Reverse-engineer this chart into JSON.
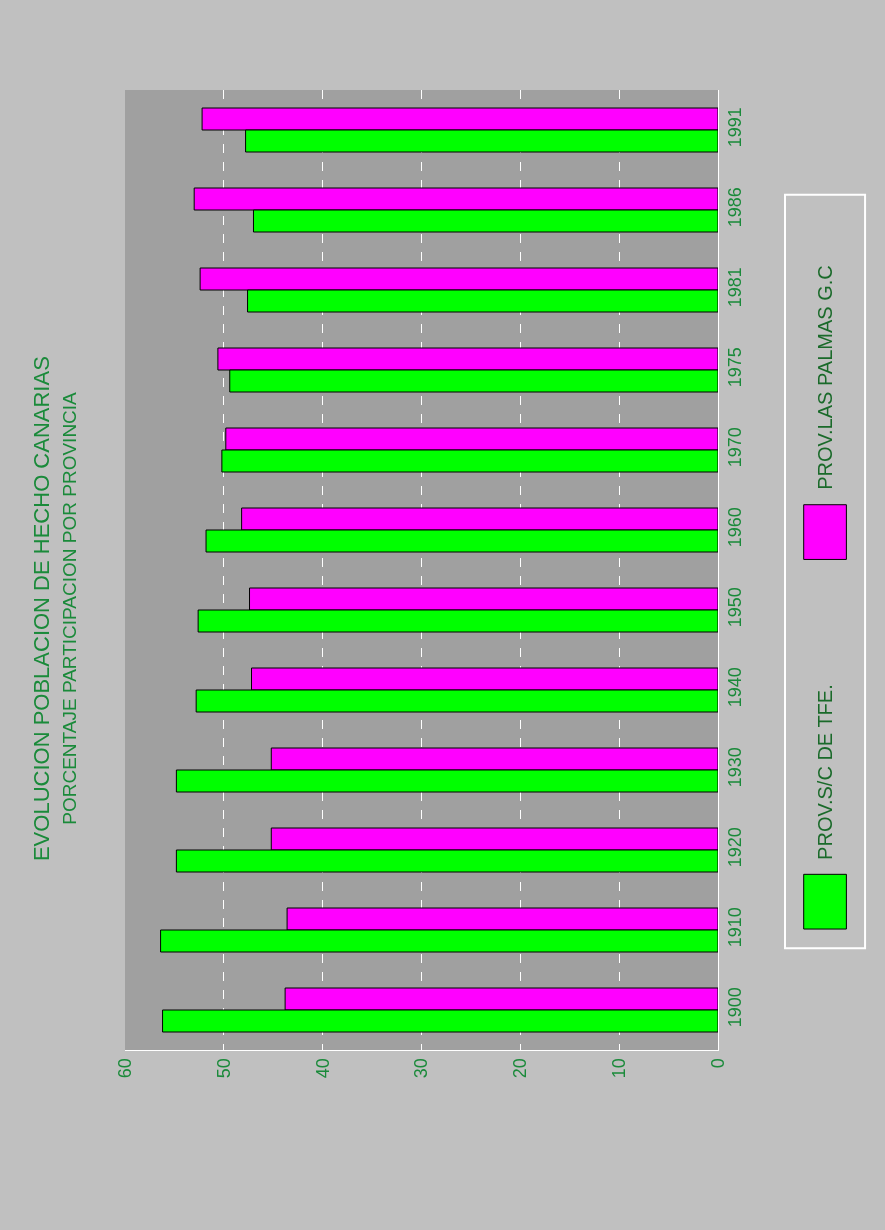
{
  "chart_data": {
    "type": "bar",
    "orientation": "horizontal",
    "title": "EVOLUCION POBLACION DE HECHO CANARIAS",
    "subtitle": "PORCENTAJE PARTICIPACION POR PROVINCIA",
    "categories": [
      "1991",
      "1986",
      "1981",
      "1975",
      "1970",
      "1960",
      "1950",
      "1940",
      "1930",
      "1920",
      "1910",
      "1900"
    ],
    "series": [
      {
        "name": "PROV.S/C DE TFE.",
        "color": "#00ff00",
        "values": [
          47.8,
          47.0,
          47.6,
          49.4,
          50.2,
          51.8,
          52.6,
          52.8,
          54.8,
          54.8,
          56.4,
          56.2
        ]
      },
      {
        "name": "PROV.LAS PALMAS G.C",
        "color": "#ff00ff",
        "values": [
          52.2,
          53.0,
          52.4,
          50.6,
          49.8,
          48.2,
          47.4,
          47.2,
          45.2,
          45.2,
          43.6,
          43.8
        ]
      }
    ],
    "xlim": [
      60,
      0
    ],
    "xticks": [
      60,
      50,
      40,
      30,
      20,
      10,
      0
    ],
    "grid": "x",
    "legend": "right"
  }
}
